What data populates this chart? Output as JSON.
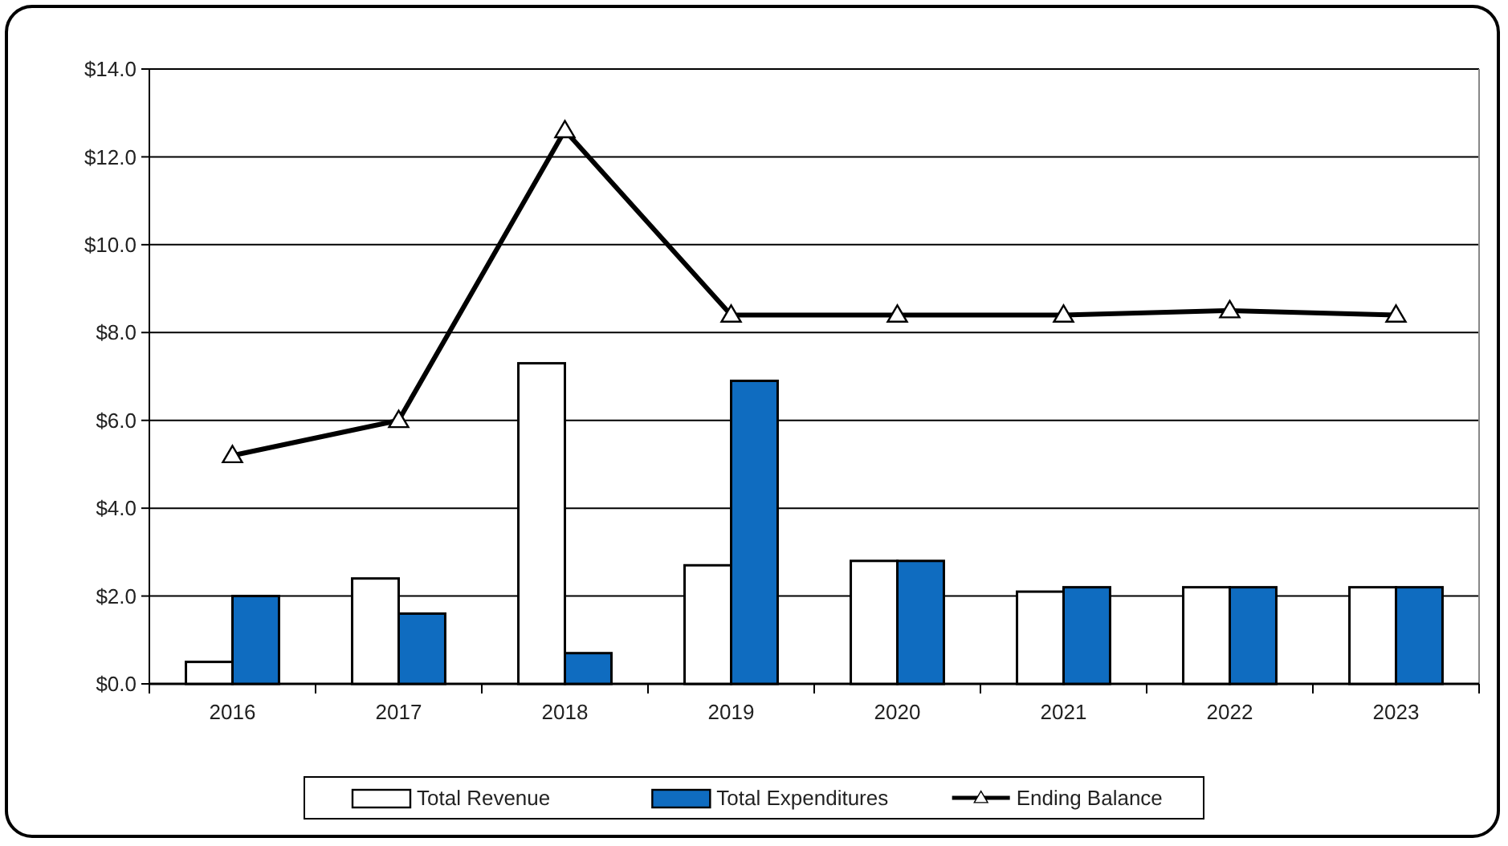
{
  "chart_data": {
    "type": "bar",
    "categories": [
      "2016",
      "2017",
      "2018",
      "2019",
      "2020",
      "2021",
      "2022",
      "2023"
    ],
    "series": [
      {
        "name": "Total Revenue",
        "color": "#ffffff",
        "values": [
          0.5,
          2.4,
          7.3,
          2.7,
          2.8,
          2.1,
          2.2,
          2.2
        ]
      },
      {
        "name": "Total Expenditures",
        "color": "#0f6cc0",
        "values": [
          2.0,
          1.6,
          0.7,
          6.9,
          2.8,
          2.2,
          2.2,
          2.2
        ]
      },
      {
        "name": "Ending Balance",
        "type": "line",
        "color": "#000000",
        "marker": "triangle",
        "values": [
          5.2,
          6.0,
          12.6,
          8.4,
          8.4,
          8.4,
          8.5,
          8.4
        ]
      }
    ],
    "ylim": [
      0,
      14
    ],
    "yticks": [
      {
        "value": 0,
        "label": "$0.0"
      },
      {
        "value": 2,
        "label": "$2.0"
      },
      {
        "value": 4,
        "label": "$4.0"
      },
      {
        "value": 6,
        "label": "$6.0"
      },
      {
        "value": 8,
        "label": "$8.0"
      },
      {
        "value": 10,
        "label": "$10.0"
      },
      {
        "value": 12,
        "label": "$12.0"
      },
      {
        "value": 14,
        "label": "$14.0"
      }
    ],
    "grid": "y",
    "legend": "bottom"
  }
}
